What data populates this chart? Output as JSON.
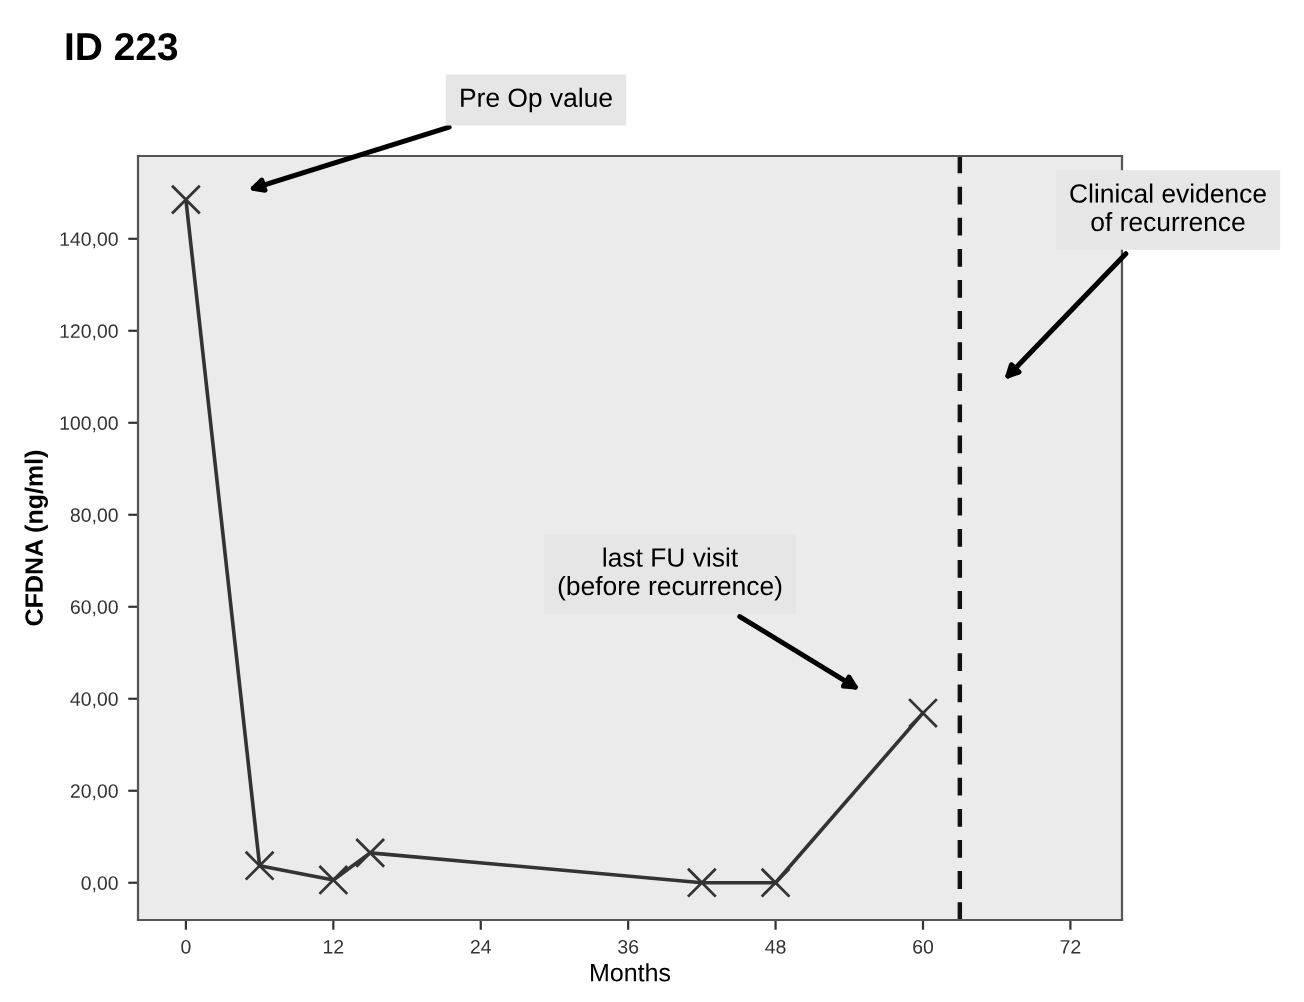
{
  "chart_data": {
    "type": "line",
    "title": "ID 223",
    "xlabel": "Months",
    "ylabel": "CFDNA (ng/ml)",
    "x": [
      0,
      6,
      12,
      15,
      42,
      48,
      60
    ],
    "series": [
      {
        "color": "#333333",
        "values": [
          148.5,
          3.7,
          0.6,
          6.5,
          0,
          0,
          36.9
        ]
      }
    ],
    "marker": "cross",
    "line_style": "solid",
    "grid": false,
    "legend": false,
    "xlim": [
      -3.9,
      76.2
    ],
    "xticks": [
      0,
      12,
      24,
      36,
      48,
      60,
      72
    ],
    "ylim": [
      -8.1,
      158
    ],
    "yticks": [
      {
        "value": 0,
        "label": "0,00"
      },
      {
        "value": 20,
        "label": "20,00"
      },
      {
        "value": 40,
        "label": "40,00"
      },
      {
        "value": 60,
        "label": "60,00"
      },
      {
        "value": 80,
        "label": "80,00"
      },
      {
        "value": 100,
        "label": "100,00"
      },
      {
        "value": 120,
        "label": "120,00"
      },
      {
        "value": 140,
        "label": "140,00"
      }
    ],
    "ref_lines": [
      {
        "axis": "x",
        "value": 63,
        "color": "#111111",
        "line_style": "dashed"
      }
    ],
    "annotations": [
      "Pre Op value",
      "last FU visit\n(before recurrence)",
      "Clinical evidence\nof recurrence"
    ]
  }
}
